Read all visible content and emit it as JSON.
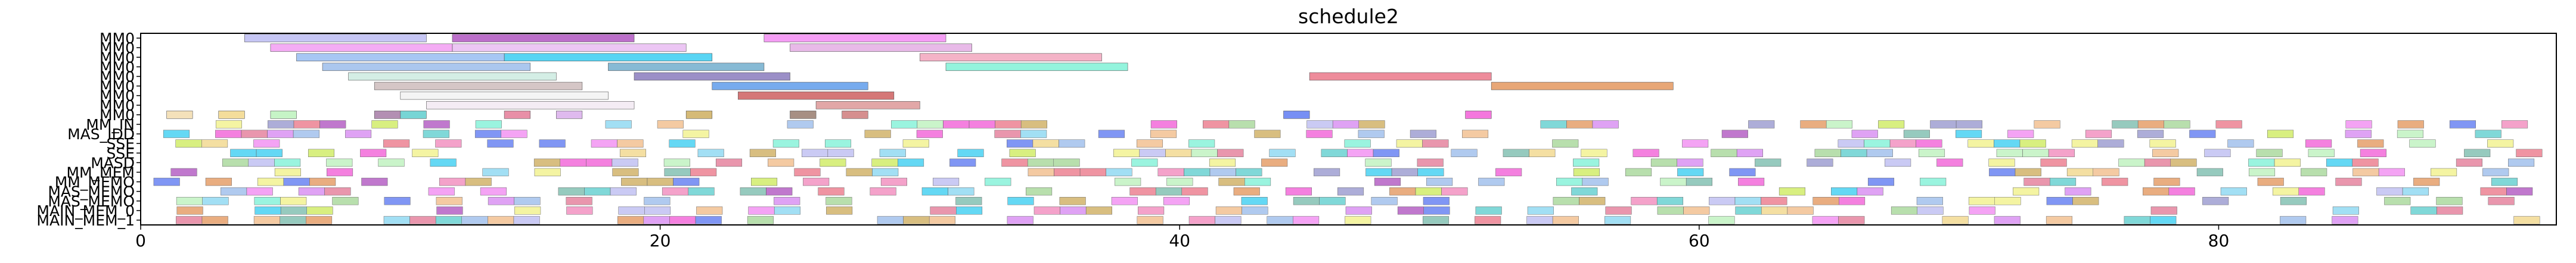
{
  "chart_data": {
    "type": "gantt",
    "title": "schedule2",
    "xlim": [
      0,
      93
    ],
    "xticks": [
      0,
      20,
      40,
      60,
      80
    ],
    "grid": false,
    "legend": "none",
    "resources": [
      "MM0",
      "MM0",
      "MM0",
      "MM0",
      "MM0",
      "MM0",
      "MM0",
      "MM0",
      "MM0",
      "MM_IN",
      "MAS_IDD",
      "SSE",
      "SSE",
      "MASD",
      "MM_MEM",
      "MM_MEMO",
      "MAS_MEMO",
      "MAS_MEMO",
      "MAIN_MEM_0",
      "MAIN_MEM_1"
    ],
    "tasks": [
      {
        "row": 0,
        "start": 4,
        "end": 11,
        "color": "#b3b3f0"
      },
      {
        "row": 0,
        "start": 12,
        "end": 19,
        "color": "#a53fb8"
      },
      {
        "row": 0,
        "start": 24,
        "end": 31,
        "color": "#f07cf0"
      },
      {
        "row": 1,
        "start": 5,
        "end": 12,
        "color": "#f090f0"
      },
      {
        "row": 1,
        "start": 12,
        "end": 21,
        "color": "#e6b3f0"
      },
      {
        "row": 1,
        "start": 25,
        "end": 32,
        "color": "#e0a3e0"
      },
      {
        "row": 2,
        "start": 6,
        "end": 14,
        "color": "#8ab4f0"
      },
      {
        "row": 2,
        "start": 14,
        "end": 22,
        "color": "#22c7f0"
      },
      {
        "row": 2,
        "start": 30,
        "end": 37,
        "color": "#f09ab4"
      },
      {
        "row": 3,
        "start": 7,
        "end": 15,
        "color": "#8fb4e8"
      },
      {
        "row": 3,
        "start": 18,
        "end": 24,
        "color": "#5fa3c7"
      },
      {
        "row": 3,
        "start": 31,
        "end": 38,
        "color": "#6ff0d2"
      },
      {
        "row": 4,
        "start": 8,
        "end": 16,
        "color": "#c6e8dc"
      },
      {
        "row": 4,
        "start": 19,
        "end": 25,
        "color": "#7a6ab4"
      },
      {
        "row": 4,
        "start": 45,
        "end": 52,
        "color": "#e8667a"
      },
      {
        "row": 5,
        "start": 9,
        "end": 17,
        "color": "#c7b3b3"
      },
      {
        "row": 5,
        "start": 22,
        "end": 28,
        "color": "#4a8fe8"
      },
      {
        "row": 5,
        "start": 52,
        "end": 59,
        "color": "#e08a4a"
      },
      {
        "row": 6,
        "start": 10,
        "end": 18,
        "color": "#f0f0f0"
      },
      {
        "row": 6,
        "start": 23,
        "end": 29,
        "color": "#c74a4a"
      },
      {
        "row": 7,
        "start": 11,
        "end": 19,
        "color": "#f0e6f0"
      },
      {
        "row": 7,
        "start": 26,
        "end": 30,
        "color": "#d88a8a"
      },
      {
        "row": 8,
        "start": 1,
        "end": 2,
        "color": "#f0d7a3"
      },
      {
        "row": 8,
        "start": 3,
        "end": 4,
        "color": "#f0d27a"
      },
      {
        "row": 8,
        "start": 5,
        "end": 6,
        "color": "#b3f0b3"
      },
      {
        "row": 8,
        "start": 9,
        "end": 10,
        "color": "#9a6a9a"
      },
      {
        "row": 8,
        "start": 10,
        "end": 11,
        "color": "#4ac7c7"
      },
      {
        "row": 8,
        "start": 14,
        "end": 15,
        "color": "#e06a8a"
      },
      {
        "row": 8,
        "start": 16,
        "end": 17,
        "color": "#d4a3e8"
      },
      {
        "row": 8,
        "start": 21,
        "end": 22,
        "color": "#c7a34a"
      },
      {
        "row": 8,
        "start": 25,
        "end": 26,
        "color": "#8a6a5a"
      },
      {
        "row": 8,
        "start": 27,
        "end": 28,
        "color": "#c76a6a"
      },
      {
        "row": 8,
        "start": 44,
        "end": 45,
        "color": "#4a6af0"
      },
      {
        "row": 8,
        "start": 51,
        "end": 52,
        "color": "#f04ad2"
      }
    ],
    "band_rows_start": 9,
    "band_rows_end": 19,
    "palette": [
      "#b3b3f0",
      "#a53fb8",
      "#f07cf0",
      "#22c7f0",
      "#6ff0d2",
      "#e8667a",
      "#e08a4a",
      "#8fb4e8",
      "#f0d27a",
      "#b3f0b3",
      "#4ac7c7",
      "#e06a8a",
      "#c7a34a",
      "#4a6af0",
      "#f04ad2",
      "#9ad28a",
      "#f0f07a",
      "#7ad2f0",
      "#d27af0",
      "#6ab4a3",
      "#f0b37a",
      "#8a8ac7",
      "#c7e84a",
      "#f07ab4"
    ]
  }
}
